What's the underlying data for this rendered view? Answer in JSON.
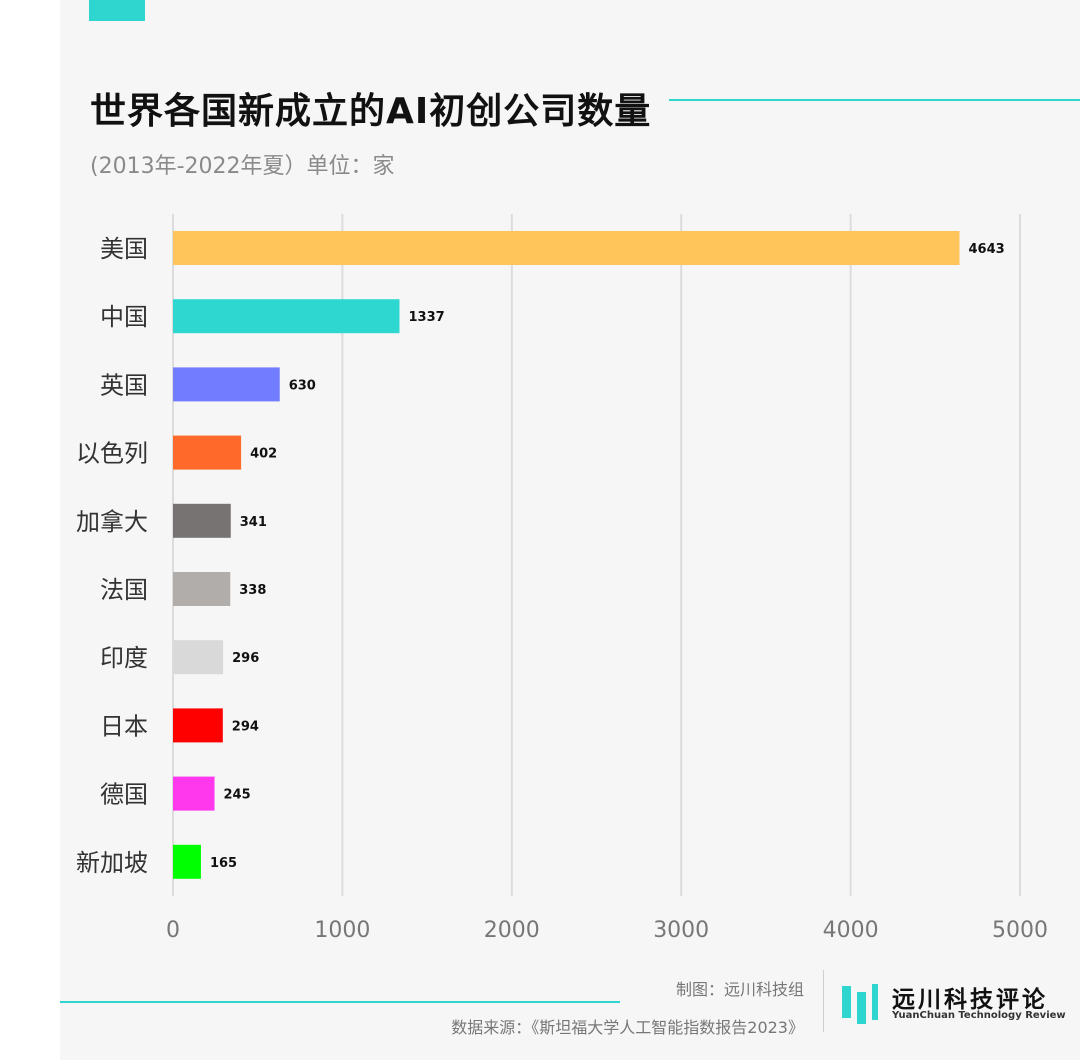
{
  "chart_data": {
    "type": "bar",
    "orientation": "horizontal",
    "title": "世界各国新成立的AI初创公司数量",
    "subtitle": "(2013年-2022年夏）单位：家",
    "categories": [
      "美国",
      "中国",
      "英国",
      "以色列",
      "加拿大",
      "法国",
      "印度",
      "日本",
      "德国",
      "新加坡"
    ],
    "values": [
      4643,
      1337,
      630,
      402,
      341,
      338,
      296,
      294,
      245,
      165
    ],
    "colors": [
      "#ffc55b",
      "#2ed8d1",
      "#717cff",
      "#ff6a2a",
      "#777373",
      "#b1adab",
      "#d9d9d9",
      "#ff0000",
      "#ff38ee",
      "#00ff00"
    ],
    "xlim": [
      0,
      5000
    ],
    "xticks": [
      "0",
      "1000",
      "2000",
      "3000",
      "4000",
      "5000"
    ],
    "grid": true,
    "legend": "none"
  },
  "footer": {
    "credit": "制图：远川科技组",
    "source": "数据来源：《斯坦福大学人工智能指数报告2023》"
  },
  "logo": {
    "name": "远川科技评论",
    "subtitle": "YuanChuan Technology Review"
  },
  "colors": {
    "accent": "#2fd5cf",
    "background": "#f6f6f6"
  }
}
